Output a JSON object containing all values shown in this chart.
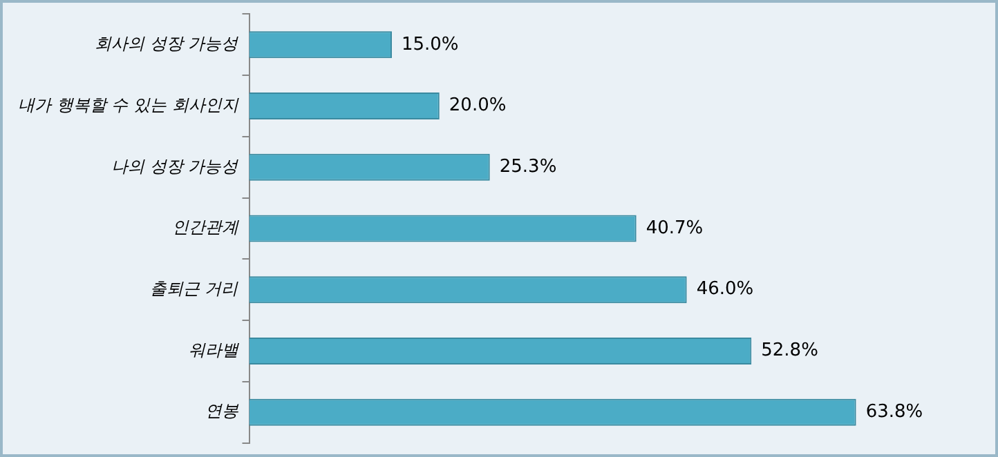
{
  "chart_data": {
    "type": "bar",
    "orientation": "horizontal",
    "categories": [
      "회사의 성장 가능성",
      "내가 행복할 수 있는 회사인지",
      "나의 성장 가능성",
      "인간관계",
      "출퇴근 거리",
      "워라밸",
      "연봉"
    ],
    "values": [
      15.0,
      20.0,
      25.3,
      40.7,
      46.0,
      52.8,
      63.8
    ],
    "value_labels": [
      "15.0%",
      "20.0%",
      "25.3%",
      "40.7%",
      "46.0%",
      "52.8%",
      "63.8%"
    ],
    "color": "#4bacc6",
    "tick_labels": "y"
  }
}
